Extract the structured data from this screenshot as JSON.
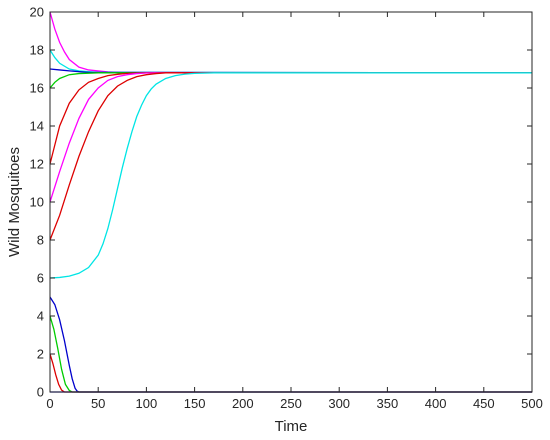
{
  "chart_data": {
    "type": "line",
    "xlabel": "Time",
    "ylabel": "Wild Mosquitoes",
    "xlim": [
      0,
      500
    ],
    "ylim": [
      0,
      20
    ],
    "grid": false,
    "xticks": [
      "0",
      "50",
      "100",
      "150",
      "200",
      "250",
      "300",
      "350",
      "400",
      "450",
      "500"
    ],
    "yticks": [
      "0",
      "2",
      "4",
      "6",
      "8",
      "10",
      "12",
      "14",
      "16",
      "18",
      "20"
    ],
    "equilibrium": 16.8,
    "series": [
      {
        "color": "#ff00ff",
        "x": [
          0,
          5,
          10,
          15,
          20,
          30,
          40,
          60,
          80,
          500
        ],
        "y": [
          20,
          19.1,
          18.4,
          17.9,
          17.5,
          17.1,
          16.95,
          16.85,
          16.8,
          16.8
        ]
      },
      {
        "color": "#00e5e5",
        "x": [
          0,
          5,
          10,
          20,
          30,
          50,
          500
        ],
        "y": [
          18,
          17.6,
          17.3,
          17.0,
          16.9,
          16.82,
          16.8
        ]
      },
      {
        "color": "#0000cc",
        "x": [
          0,
          10,
          20,
          40,
          500
        ],
        "y": [
          17,
          16.95,
          16.9,
          16.82,
          16.8
        ]
      },
      {
        "color": "#00cc00",
        "x": [
          0,
          5,
          10,
          20,
          30,
          50,
          500
        ],
        "y": [
          16,
          16.3,
          16.5,
          16.7,
          16.76,
          16.8,
          16.8
        ]
      },
      {
        "color": "#dd0000",
        "x": [
          0,
          5,
          10,
          15,
          20,
          30,
          40,
          50,
          60,
          70,
          80,
          100,
          500
        ],
        "y": [
          12,
          13.0,
          14.0,
          14.6,
          15.2,
          15.9,
          16.3,
          16.5,
          16.65,
          16.72,
          16.77,
          16.8,
          16.8
        ]
      },
      {
        "color": "#ff00ff",
        "x": [
          0,
          10,
          20,
          30,
          40,
          50,
          60,
          70,
          80,
          90,
          100,
          120,
          500
        ],
        "y": [
          10,
          11.6,
          13.1,
          14.4,
          15.4,
          16.0,
          16.4,
          16.6,
          16.7,
          16.76,
          16.79,
          16.8,
          16.8
        ]
      },
      {
        "color": "#dd0000",
        "x": [
          0,
          10,
          20,
          30,
          40,
          50,
          60,
          70,
          80,
          90,
          100,
          110,
          120,
          500
        ],
        "y": [
          8,
          9.3,
          10.9,
          12.4,
          13.7,
          14.8,
          15.6,
          16.1,
          16.4,
          16.6,
          16.7,
          16.76,
          16.8,
          16.8
        ]
      },
      {
        "color": "#00e5e5",
        "x": [
          0,
          10,
          20,
          30,
          40,
          50,
          55,
          60,
          65,
          70,
          75,
          80,
          85,
          90,
          95,
          100,
          105,
          110,
          120,
          130,
          140,
          150,
          170,
          500
        ],
        "y": [
          6,
          6.03,
          6.1,
          6.25,
          6.55,
          7.2,
          7.8,
          8.6,
          9.6,
          10.7,
          11.8,
          12.8,
          13.7,
          14.5,
          15.1,
          15.6,
          15.95,
          16.2,
          16.5,
          16.65,
          16.73,
          16.77,
          16.8,
          16.8
        ]
      },
      {
        "color": "#0000cc",
        "x": [
          0,
          5,
          10,
          15,
          20,
          23,
          26,
          28,
          30,
          500
        ],
        "y": [
          5,
          4.6,
          3.8,
          2.7,
          1.4,
          0.7,
          0.2,
          0.05,
          0,
          0
        ]
      },
      {
        "color": "#00cc00",
        "x": [
          0,
          4,
          8,
          12,
          16,
          20,
          23,
          500
        ],
        "y": [
          4,
          3.3,
          2.3,
          1.2,
          0.4,
          0.08,
          0,
          0
        ]
      },
      {
        "color": "#dd0000",
        "x": [
          0,
          3,
          6,
          9,
          12,
          15,
          500
        ],
        "y": [
          2,
          1.5,
          0.9,
          0.4,
          0.1,
          0,
          0
        ]
      },
      {
        "color": "#0000cc",
        "x": [
          0,
          500
        ],
        "y": [
          0,
          0
        ]
      }
    ]
  }
}
